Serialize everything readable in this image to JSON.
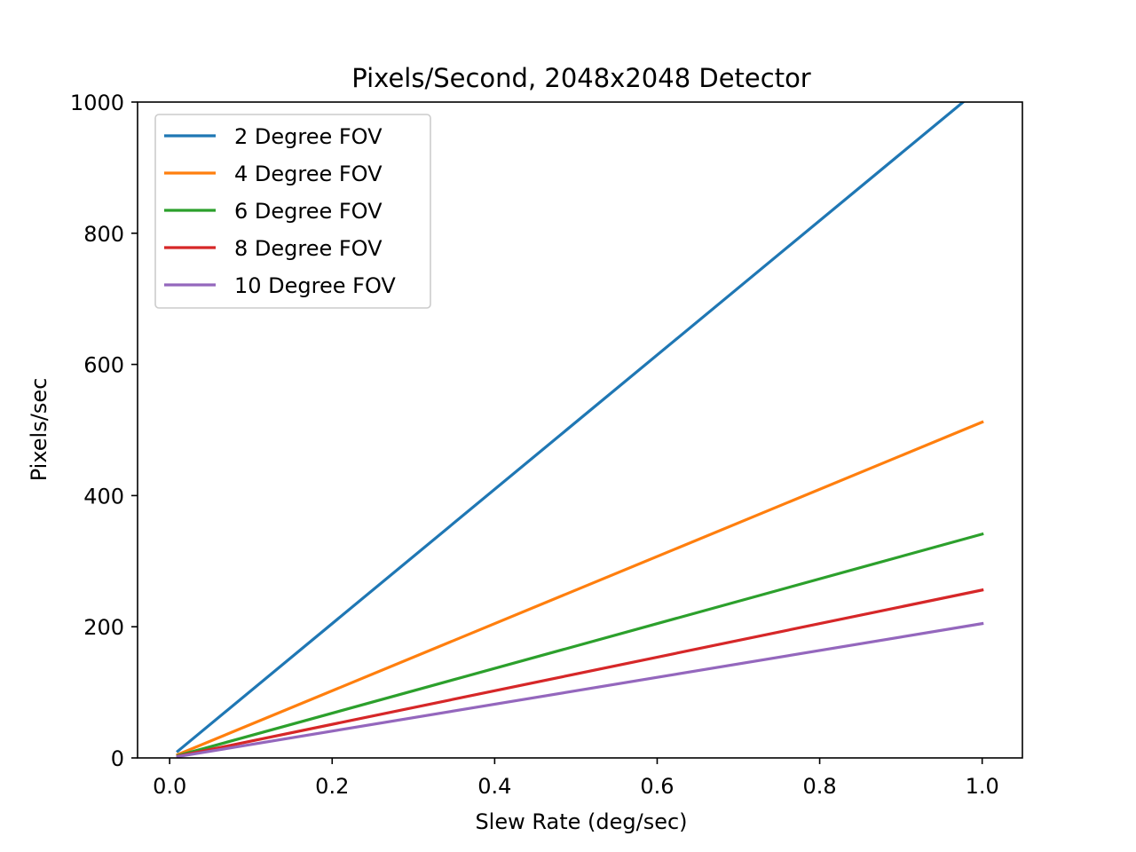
{
  "chart_data": {
    "type": "line",
    "title": "Pixels/Second, 2048x2048 Detector",
    "xlabel": "Slew Rate (deg/sec)",
    "ylabel": "Pixels/sec",
    "xlim": [
      -0.0395,
      1.0495
    ],
    "ylim": [
      0,
      1000
    ],
    "xticks": [
      0.0,
      0.2,
      0.4,
      0.6,
      0.8,
      1.0
    ],
    "xtick_labels": [
      "0.0",
      "0.2",
      "0.4",
      "0.6",
      "0.8",
      "1.0"
    ],
    "yticks": [
      0,
      200,
      400,
      600,
      800,
      1000
    ],
    "ytick_labels": [
      "0",
      "200",
      "400",
      "600",
      "800",
      "1000"
    ],
    "grid": false,
    "legend_position": "upper-left",
    "x": [
      0.01,
      1.0
    ],
    "series": [
      {
        "name": "2 Degree FOV",
        "color": "#1f77b4",
        "values": [
          10.24,
          1024
        ]
      },
      {
        "name": "4 Degree FOV",
        "color": "#ff7f0e",
        "values": [
          5.12,
          512
        ]
      },
      {
        "name": "6 Degree FOV",
        "color": "#2ca02c",
        "values": [
          3.41,
          341.3
        ]
      },
      {
        "name": "8 Degree FOV",
        "color": "#d62728",
        "values": [
          2.56,
          256
        ]
      },
      {
        "name": "10 Degree FOV",
        "color": "#9467bd",
        "values": [
          2.05,
          204.8
        ]
      }
    ]
  }
}
